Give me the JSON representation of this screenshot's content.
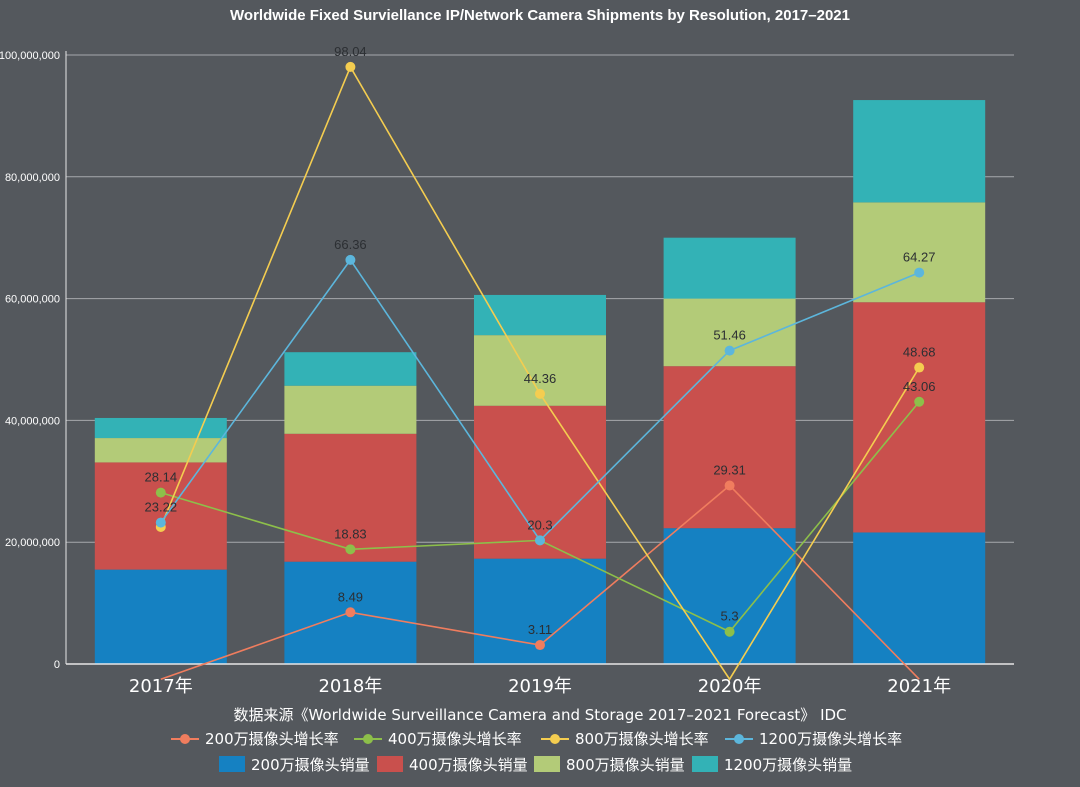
{
  "chart_data": {
    "type": "bar+line",
    "title": "Worldwide Fixed Surviellance IP/Network Camera Shipments by Resolution, 2017–2021",
    "source": "数据来源《Worldwide Surveillance Camera and Storage 2017–2021 Forecast》 IDC",
    "categories": [
      "2017年",
      "2018年",
      "2019年",
      "2020年",
      "2021年"
    ],
    "ylim": [
      0,
      100000000
    ],
    "yticks": [
      {
        "value": 0,
        "label": "0"
      },
      {
        "value": 20000000,
        "label": "20,000,000"
      },
      {
        "value": 40000000,
        "label": "40,000,000"
      },
      {
        "value": 60000000,
        "label": "60,000,000"
      },
      {
        "value": 80000000,
        "label": "80,000,000"
      },
      {
        "value": 100000000,
        "label": "100,000,000"
      }
    ],
    "grid": true,
    "bar_series": [
      {
        "name": "200万摄像头销量",
        "color": "#1581c2",
        "values": [
          15500000,
          16800000,
          17300000,
          22300000,
          21600000
        ]
      },
      {
        "name": "400万摄像头销量",
        "color": "#c9504d",
        "values": [
          17600000,
          21000000,
          25100000,
          26600000,
          37800000
        ]
      },
      {
        "name": "800万摄像头销量",
        "color": "#b3cb78",
        "values": [
          4000000,
          7900000,
          11600000,
          11100000,
          16400000
        ]
      },
      {
        "name": "1200万摄像头销量",
        "color": "#33b2b6",
        "values": [
          3300000,
          5500000,
          6600000,
          10000000,
          16800000
        ]
      }
    ],
    "growth_scale_max": 100,
    "line_series": [
      {
        "name": "200万摄像头增长率",
        "color": "#f07d5e",
        "values": [
          -2.5,
          8.49,
          3.11,
          29.31,
          -2.5
        ],
        "labels": [
          "",
          "8.49",
          "3.11",
          "29.31",
          ""
        ]
      },
      {
        "name": "400万摄像头增长率",
        "color": "#8dbf4a",
        "values": [
          28.14,
          18.83,
          20.3,
          5.3,
          43.06
        ],
        "labels": [
          "28.14",
          "18.83",
          "20.3",
          "5.3",
          "43.06"
        ]
      },
      {
        "name": "800万摄像头增长率",
        "color": "#f4cd50",
        "values": [
          22.5,
          98.04,
          44.36,
          -2.5,
          48.68
        ],
        "labels": [
          "",
          "98.04",
          "44.36",
          "",
          "48.68"
        ]
      },
      {
        "name": "1200万摄像头增长率",
        "color": "#5cb6dc",
        "values": [
          23.22,
          66.36,
          20.3,
          51.46,
          64.27
        ],
        "labels": [
          "23.22",
          "66.36",
          "",
          "51.46",
          "64.27"
        ]
      }
    ]
  }
}
